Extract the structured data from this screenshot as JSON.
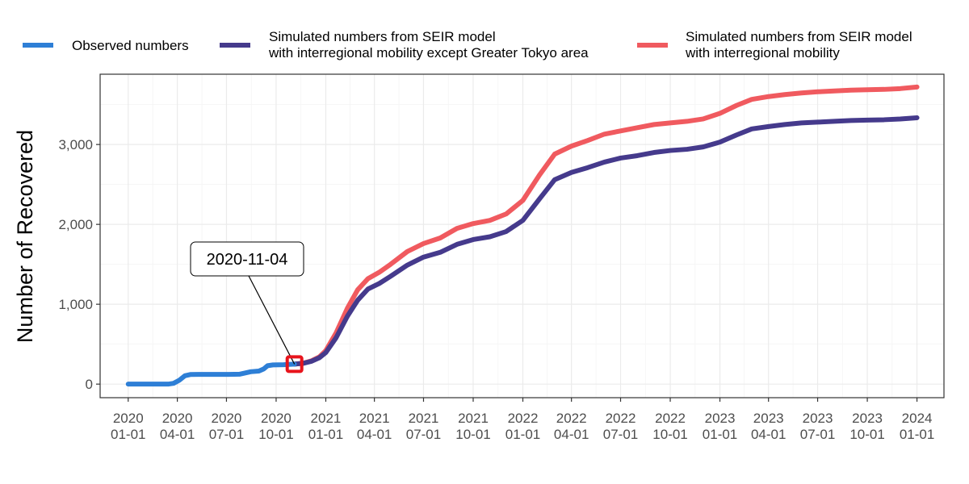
{
  "chart_data": {
    "type": "line",
    "title": "",
    "xlabel": "",
    "ylabel": "Number of Recovered",
    "x_type": "date",
    "xlim": [
      "2019-11-10",
      "2024-02-20"
    ],
    "ylim": [
      -170,
      3880
    ],
    "grid": true,
    "legend_position": "top",
    "x_ticks": [
      {
        "date": "2020-01-01",
        "line1": "2020",
        "line2": "01-01"
      },
      {
        "date": "2020-04-01",
        "line1": "2020",
        "line2": "04-01"
      },
      {
        "date": "2020-07-01",
        "line1": "2020",
        "line2": "07-01"
      },
      {
        "date": "2020-10-01",
        "line1": "2020",
        "line2": "10-01"
      },
      {
        "date": "2021-01-01",
        "line1": "2021",
        "line2": "01-01"
      },
      {
        "date": "2021-04-01",
        "line1": "2021",
        "line2": "04-01"
      },
      {
        "date": "2021-07-01",
        "line1": "2021",
        "line2": "07-01"
      },
      {
        "date": "2021-10-01",
        "line1": "2021",
        "line2": "10-01"
      },
      {
        "date": "2022-01-01",
        "line1": "2022",
        "line2": "01-01"
      },
      {
        "date": "2022-04-01",
        "line1": "2022",
        "line2": "04-01"
      },
      {
        "date": "2022-07-01",
        "line1": "2022",
        "line2": "07-01"
      },
      {
        "date": "2022-10-01",
        "line1": "2022",
        "line2": "10-01"
      },
      {
        "date": "2023-01-01",
        "line1": "2023",
        "line2": "01-01"
      },
      {
        "date": "2023-04-01",
        "line1": "2023",
        "line2": "04-01"
      },
      {
        "date": "2023-07-01",
        "line1": "2023",
        "line2": "07-01"
      },
      {
        "date": "2023-10-01",
        "line1": "2023",
        "line2": "10-01"
      },
      {
        "date": "2024-01-01",
        "line1": "2024",
        "line2": "01-01"
      }
    ],
    "y_ticks": [
      {
        "value": 0,
        "label": "0"
      },
      {
        "value": 1000,
        "label": "1,000"
      },
      {
        "value": 2000,
        "label": "2,000"
      },
      {
        "value": 3000,
        "label": "3,000"
      }
    ],
    "annotation": {
      "label": "2020-11-04",
      "date": "2020-11-04",
      "value": 250,
      "marker_color": "#e8141c"
    },
    "series": [
      {
        "name": "Observed numbers",
        "color": "#2e7fd6",
        "points": [
          [
            "2020-01-01",
            0
          ],
          [
            "2020-02-15",
            0
          ],
          [
            "2020-03-15",
            0
          ],
          [
            "2020-03-25",
            10
          ],
          [
            "2020-04-05",
            50
          ],
          [
            "2020-04-15",
            105
          ],
          [
            "2020-04-25",
            120
          ],
          [
            "2020-05-10",
            122
          ],
          [
            "2020-06-10",
            122
          ],
          [
            "2020-07-05",
            122
          ],
          [
            "2020-07-25",
            124
          ],
          [
            "2020-08-05",
            140
          ],
          [
            "2020-08-15",
            155
          ],
          [
            "2020-08-30",
            163
          ],
          [
            "2020-09-08",
            190
          ],
          [
            "2020-09-15",
            230
          ],
          [
            "2020-09-25",
            240
          ],
          [
            "2020-10-15",
            243
          ],
          [
            "2020-11-04",
            250
          ]
        ]
      },
      {
        "name": "Simulated numbers from SEIR model\nwith interregional mobility except Greater Tokyo area",
        "color": "#453a8c",
        "points": [
          [
            "2020-11-04",
            250
          ],
          [
            "2020-11-20",
            260
          ],
          [
            "2020-12-05",
            285
          ],
          [
            "2020-12-20",
            330
          ],
          [
            "2021-01-01",
            395
          ],
          [
            "2021-01-20",
            580
          ],
          [
            "2021-02-10",
            850
          ],
          [
            "2021-03-01",
            1050
          ],
          [
            "2021-03-20",
            1190
          ],
          [
            "2021-04-10",
            1260
          ],
          [
            "2021-05-01",
            1350
          ],
          [
            "2021-06-01",
            1490
          ],
          [
            "2021-07-01",
            1590
          ],
          [
            "2021-08-01",
            1650
          ],
          [
            "2021-09-01",
            1750
          ],
          [
            "2021-10-01",
            1810
          ],
          [
            "2021-11-01",
            1845
          ],
          [
            "2021-12-01",
            1910
          ],
          [
            "2022-01-01",
            2050
          ],
          [
            "2022-02-01",
            2320
          ],
          [
            "2022-03-01",
            2560
          ],
          [
            "2022-04-01",
            2650
          ],
          [
            "2022-05-01",
            2710
          ],
          [
            "2022-06-01",
            2780
          ],
          [
            "2022-07-01",
            2830
          ],
          [
            "2022-08-01",
            2860
          ],
          [
            "2022-09-01",
            2900
          ],
          [
            "2022-10-01",
            2925
          ],
          [
            "2022-11-01",
            2940
          ],
          [
            "2022-12-01",
            2970
          ],
          [
            "2023-01-01",
            3030
          ],
          [
            "2023-02-01",
            3120
          ],
          [
            "2023-03-01",
            3195
          ],
          [
            "2023-04-01",
            3225
          ],
          [
            "2023-05-01",
            3250
          ],
          [
            "2023-06-01",
            3270
          ],
          [
            "2023-07-01",
            3280
          ],
          [
            "2023-08-01",
            3290
          ],
          [
            "2023-09-01",
            3300
          ],
          [
            "2023-10-01",
            3305
          ],
          [
            "2023-11-01",
            3310
          ],
          [
            "2023-12-01",
            3320
          ],
          [
            "2024-01-01",
            3335
          ]
        ]
      },
      {
        "name": "Simulated numbers from SEIR model\nwith interregional mobility",
        "color": "#f05a5f",
        "points": [
          [
            "2020-11-04",
            250
          ],
          [
            "2020-11-20",
            262
          ],
          [
            "2020-12-05",
            290
          ],
          [
            "2020-12-20",
            340
          ],
          [
            "2021-01-01",
            420
          ],
          [
            "2021-01-20",
            640
          ],
          [
            "2021-02-10",
            950
          ],
          [
            "2021-03-01",
            1180
          ],
          [
            "2021-03-20",
            1320
          ],
          [
            "2021-04-10",
            1400
          ],
          [
            "2021-05-01",
            1500
          ],
          [
            "2021-06-01",
            1660
          ],
          [
            "2021-07-01",
            1760
          ],
          [
            "2021-08-01",
            1830
          ],
          [
            "2021-09-01",
            1950
          ],
          [
            "2021-10-01",
            2010
          ],
          [
            "2021-11-01",
            2050
          ],
          [
            "2021-12-01",
            2130
          ],
          [
            "2022-01-01",
            2300
          ],
          [
            "2022-02-01",
            2620
          ],
          [
            "2022-03-01",
            2880
          ],
          [
            "2022-04-01",
            2980
          ],
          [
            "2022-05-01",
            3050
          ],
          [
            "2022-06-01",
            3130
          ],
          [
            "2022-07-01",
            3170
          ],
          [
            "2022-08-01",
            3210
          ],
          [
            "2022-09-01",
            3250
          ],
          [
            "2022-10-01",
            3270
          ],
          [
            "2022-11-01",
            3290
          ],
          [
            "2022-12-01",
            3320
          ],
          [
            "2023-01-01",
            3390
          ],
          [
            "2023-02-01",
            3490
          ],
          [
            "2023-03-01",
            3565
          ],
          [
            "2023-04-01",
            3600
          ],
          [
            "2023-05-01",
            3625
          ],
          [
            "2023-06-01",
            3645
          ],
          [
            "2023-07-01",
            3660
          ],
          [
            "2023-08-01",
            3670
          ],
          [
            "2023-09-01",
            3680
          ],
          [
            "2023-10-01",
            3685
          ],
          [
            "2023-11-01",
            3690
          ],
          [
            "2023-12-01",
            3700
          ],
          [
            "2024-01-01",
            3720
          ]
        ]
      }
    ]
  }
}
